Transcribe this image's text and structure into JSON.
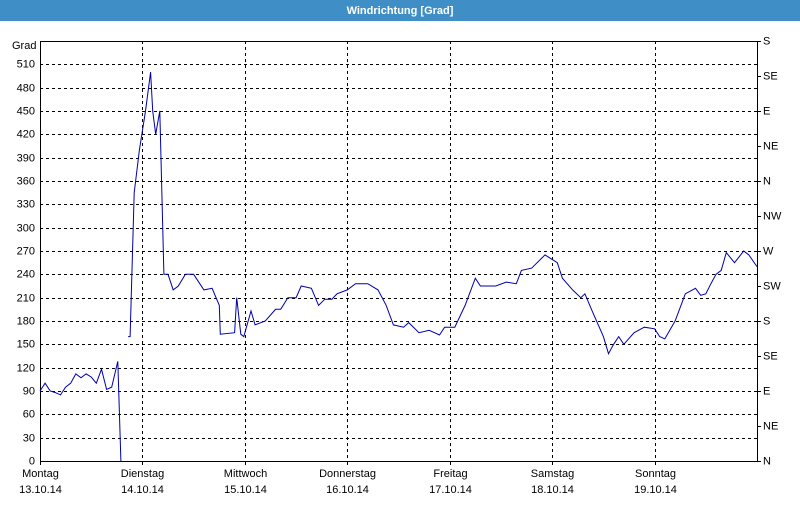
{
  "chart_data": {
    "type": "line",
    "title": "Windrichtung [Grad]",
    "y_label": "Grad",
    "xlim": [
      0,
      7
    ],
    "ylim": [
      0,
      540
    ],
    "y2lim": [
      0,
      540
    ],
    "grid": true,
    "xticks": [
      {
        "value": 0,
        "label": "Montag",
        "sublabel": "13.10.14"
      },
      {
        "value": 1,
        "label": "Dienstag",
        "sublabel": "14.10.14"
      },
      {
        "value": 2,
        "label": "Mittwoch",
        "sublabel": "15.10.14"
      },
      {
        "value": 3,
        "label": "Donnerstag",
        "sublabel": "16.10.14"
      },
      {
        "value": 4,
        "label": "Freitag",
        "sublabel": "17.10.14"
      },
      {
        "value": 5,
        "label": "Samstag",
        "sublabel": "18.10.14"
      },
      {
        "value": 6,
        "label": "Sonntag",
        "sublabel": "19.10.14"
      }
    ],
    "yticks": [
      0,
      30,
      60,
      90,
      120,
      150,
      180,
      210,
      240,
      270,
      300,
      330,
      360,
      390,
      420,
      450,
      480,
      510
    ],
    "y2ticks": [
      {
        "value": 0,
        "label": "N"
      },
      {
        "value": 45,
        "label": "NE"
      },
      {
        "value": 90,
        "label": "E"
      },
      {
        "value": 135,
        "label": "SE"
      },
      {
        "value": 180,
        "label": "S"
      },
      {
        "value": 225,
        "label": "SW"
      },
      {
        "value": 270,
        "label": "W"
      },
      {
        "value": 315,
        "label": "NW"
      },
      {
        "value": 360,
        "label": "N"
      },
      {
        "value": 405,
        "label": "NE"
      },
      {
        "value": 450,
        "label": "E"
      },
      {
        "value": 495,
        "label": "SE"
      },
      {
        "value": 540,
        "label": "S"
      }
    ],
    "x": [
      0,
      0.05,
      0.1,
      0.15,
      0.2,
      0.25,
      0.3,
      0.35,
      0.4,
      0.45,
      0.5,
      0.55,
      0.6,
      0.65,
      0.7,
      0.76,
      0.79,
      0.82,
      0.86,
      0.88,
      0.92,
      0.97,
      1.03,
      1.08,
      1.1,
      1.13,
      1.17,
      1.21,
      1.25,
      1.3,
      1.35,
      1.42,
      1.5,
      1.6,
      1.68,
      1.75,
      1.76,
      1.9,
      1.92,
      1.96,
      1.99,
      2.06,
      2.1,
      2.2,
      2.3,
      2.35,
      2.42,
      2.5,
      2.55,
      2.65,
      2.72,
      2.78,
      2.85,
      2.9,
      3.0,
      3.08,
      3.2,
      3.3,
      3.38,
      3.45,
      3.55,
      3.6,
      3.7,
      3.8,
      3.9,
      3.95,
      4.05,
      4.15,
      4.25,
      4.3,
      4.45,
      4.55,
      4.65,
      4.7,
      4.8,
      4.93,
      5.05,
      5.1,
      5.2,
      5.28,
      5.32,
      5.4,
      5.5,
      5.55,
      5.6,
      5.65,
      5.7,
      5.8,
      5.9,
      6.0,
      6.05,
      6.1,
      6.2,
      6.3,
      6.4,
      6.45,
      6.5,
      6.55,
      6.6,
      6.65,
      6.7,
      6.78,
      6.87,
      6.92,
      7.0
    ],
    "series": [
      {
        "name": "Windrichtung",
        "color": "#0000aa",
        "values": [
          90,
          100,
          90,
          88,
          85,
          95,
          100,
          112,
          107,
          112,
          108,
          100,
          118,
          92,
          95,
          128,
          0,
          null,
          160,
          160,
          345,
          400,
          450,
          500,
          450,
          420,
          450,
          240,
          240,
          220,
          225,
          240,
          240,
          220,
          222,
          200,
          163,
          165,
          210,
          163,
          160,
          193,
          175,
          180,
          195,
          195,
          210,
          210,
          225,
          222,
          200,
          208,
          208,
          215,
          220,
          228,
          228,
          220,
          200,
          175,
          172,
          178,
          165,
          168,
          162,
          172,
          172,
          200,
          235,
          225,
          225,
          230,
          228,
          245,
          248,
          265,
          255,
          235,
          220,
          210,
          215,
          190,
          160,
          138,
          150,
          160,
          150,
          165,
          172,
          170,
          160,
          157,
          180,
          215,
          222,
          213,
          215,
          228,
          240,
          245,
          268,
          255,
          270,
          265,
          250
        ]
      }
    ]
  }
}
